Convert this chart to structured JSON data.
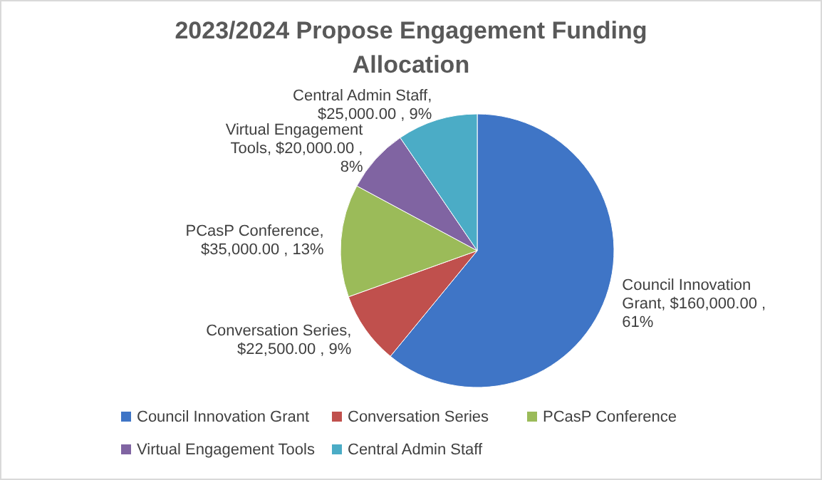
{
  "chart_data": {
    "type": "pie",
    "title": "2023/2024 Propose Engagement Funding Allocation",
    "categories": [
      "Council Innovation Grant",
      "Conversation Series",
      "PCasP Conference",
      "Virtual Engagement Tools",
      "Central Admin Staff"
    ],
    "values": [
      160000,
      22500,
      35000,
      20000,
      25000
    ],
    "colors": [
      "#3f75c6",
      "#c0504d",
      "#9bbb59",
      "#8064a2",
      "#4bacc6"
    ],
    "value_labels": [
      "Council Innovation Grant,  $160,000.00 , 61%",
      "Conversation Series, $22,500.00 , 9%",
      "PCasP Conference, $35,000.00 , 13%",
      "Virtual Engagement Tools,  $20,000.00 , 8%",
      "Central Admin Staff, $25,000.00 , 9%"
    ],
    "legend": "bottom"
  }
}
